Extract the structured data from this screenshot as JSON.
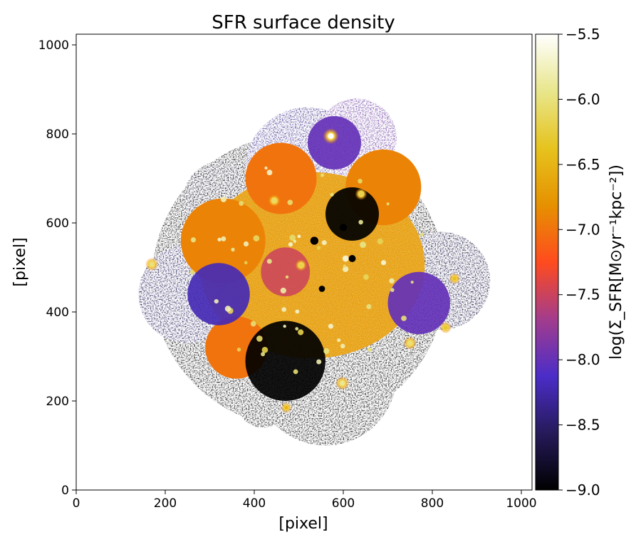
{
  "chart_data": {
    "type": "heatmap",
    "title": "SFR surface density",
    "xlabel": "[pixel]",
    "ylabel": "[pixel]",
    "xlim": [
      0,
      1024
    ],
    "ylim": [
      0,
      1024
    ],
    "x_ticks": [
      0,
      200,
      400,
      600,
      800,
      1000
    ],
    "y_ticks": [
      0,
      200,
      400,
      600,
      800,
      1000
    ],
    "colorbar": {
      "label": "log(Σ_SFR[M⊙yr⁻¹kpc⁻²])",
      "range": [
        -9.0,
        -5.5
      ],
      "ticks": [
        "−5.5",
        "−6.0",
        "−6.5",
        "−7.0",
        "−7.5",
        "−8.0",
        "−8.5",
        "−9.0"
      ],
      "colormap": "CMRmap",
      "colormap_stops": [
        "#000000",
        "#261a5a",
        "#4b2dc8",
        "#a33c8c",
        "#ff4b1e",
        "#e69100",
        "#e6c31e",
        "#e8e68c",
        "#ffffff"
      ]
    },
    "regions": [
      {
        "x": 530,
        "y": 505,
        "r_data": 220,
        "log_sfr": -6.7,
        "kind": "main disk"
      },
      {
        "x": 620,
        "y": 620,
        "r_data": 60,
        "log_sfr": -9.0,
        "kind": "hole"
      },
      {
        "x": 320,
        "y": 440,
        "r_data": 70,
        "log_sfr": -8.2,
        "kind": "patch"
      },
      {
        "x": 770,
        "y": 420,
        "r_data": 70,
        "log_sfr": -8.0,
        "kind": "patch"
      },
      {
        "x": 580,
        "y": 780,
        "r_data": 60,
        "log_sfr": -8.0,
        "kind": "patch"
      },
      {
        "x": 470,
        "y": 290,
        "r_data": 90,
        "log_sfr": -9.0,
        "kind": "patch"
      }
    ],
    "bright_knots": [
      {
        "x": 572,
        "y": 795,
        "log_sfr": -5.5
      },
      {
        "x": 170,
        "y": 507,
        "log_sfr": -6.0
      },
      {
        "x": 598,
        "y": 240,
        "log_sfr": -5.9
      },
      {
        "x": 750,
        "y": 330,
        "log_sfr": -6.0
      },
      {
        "x": 505,
        "y": 505,
        "log_sfr": -6.2
      },
      {
        "x": 850,
        "y": 475,
        "log_sfr": -6.4
      },
      {
        "x": 830,
        "y": 365,
        "log_sfr": -6.3
      },
      {
        "x": 640,
        "y": 665,
        "log_sfr": -6.2
      },
      {
        "x": 445,
        "y": 650,
        "log_sfr": -6.1
      },
      {
        "x": 472,
        "y": 185,
        "log_sfr": -6.5
      }
    ]
  }
}
